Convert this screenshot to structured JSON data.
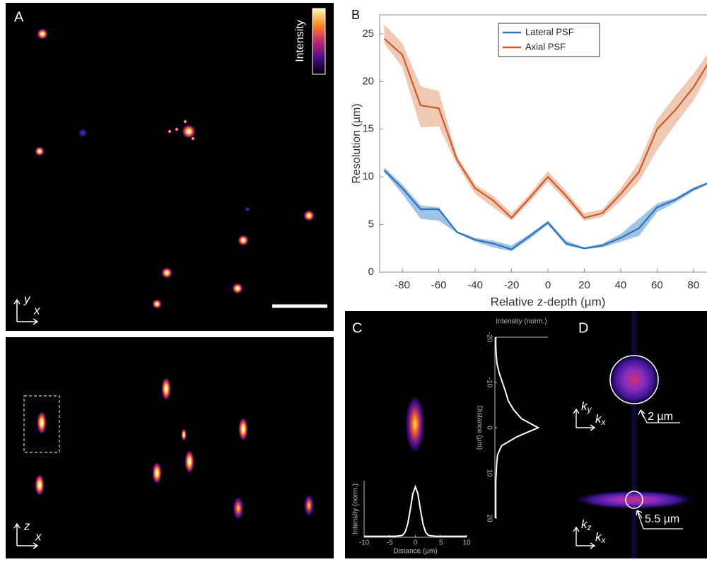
{
  "panel_labels": [
    "A",
    "B",
    "C",
    "D"
  ],
  "panel_a": {
    "colorbar_label": "Intensity",
    "xy_axis_labels": {
      "vertical": "y",
      "horizontal": "x"
    },
    "xz_axis_labels": {
      "vertical": "z",
      "horizontal": "x"
    }
  },
  "panel_d": {
    "top_axes": [
      {
        "base": "k",
        "sub": "y"
      },
      {
        "base": "k",
        "sub": "x"
      }
    ],
    "top_size": "2 µm",
    "bottom_axes": [
      {
        "base": "k",
        "sub": "z"
      },
      {
        "base": "k",
        "sub": "x"
      }
    ],
    "bottom_size": "5.5 µm"
  },
  "chart_data": [
    {
      "type": "line",
      "xlabel": "Relative z-depth (µm)",
      "ylabel": "Resolution (µm)",
      "x": [
        -90,
        -80,
        -70,
        -60,
        -50,
        -40,
        -30,
        -20,
        -10,
        0,
        10,
        20,
        30,
        40,
        50,
        60,
        70,
        80,
        90
      ],
      "series": [
        {
          "name": "Lateral PSF",
          "color": "#2e73b8",
          "band_color": "#8fb8e0",
          "values": [
            10.7,
            8.8,
            6.6,
            6.6,
            4.2,
            3.4,
            3.0,
            2.4,
            3.8,
            5.2,
            3.0,
            2.5,
            2.8,
            3.6,
            4.6,
            6.8,
            7.6,
            8.7,
            9.5
          ],
          "lower": [
            10.5,
            8.2,
            5.6,
            5.4,
            4.1,
            3.2,
            2.6,
            2.2,
            3.5,
            5.0,
            2.8,
            2.4,
            2.6,
            3.2,
            3.8,
            6.3,
            7.3,
            8.5,
            9.4
          ],
          "upper": [
            11.0,
            9.2,
            7.0,
            6.8,
            4.3,
            3.6,
            3.3,
            2.8,
            4.0,
            5.4,
            3.3,
            2.6,
            3.0,
            4.0,
            5.6,
            7.2,
            7.8,
            8.9,
            9.6
          ]
        },
        {
          "name": "Axial PSF",
          "color": "#cc5a2a",
          "band_color": "#edbfa8",
          "values": [
            24.5,
            22.8,
            17.5,
            17.2,
            11.8,
            8.8,
            7.5,
            5.7,
            7.8,
            10.0,
            8.0,
            5.7,
            6.2,
            8.2,
            10.5,
            15.0,
            17.0,
            19.4,
            22.5
          ],
          "lower": [
            24.0,
            21.5,
            15.2,
            15.3,
            11.3,
            8.2,
            6.8,
            5.4,
            7.4,
            9.5,
            7.5,
            5.4,
            5.8,
            7.5,
            9.5,
            12.8,
            15.5,
            18.0,
            21.5
          ],
          "upper": [
            26.0,
            24.0,
            19.5,
            19.0,
            12.2,
            9.2,
            8.0,
            6.2,
            8.2,
            10.6,
            8.5,
            6.2,
            6.6,
            8.8,
            11.5,
            16.0,
            18.5,
            20.8,
            23.5
          ]
        }
      ],
      "xlim": [
        -92.5,
        92.5
      ],
      "ylim": [
        0,
        27
      ],
      "xticks": [
        -80,
        -60,
        -40,
        -20,
        0,
        20,
        40,
        60,
        80
      ],
      "yticks": [
        0,
        5,
        10,
        15,
        20,
        25
      ],
      "legend": "top"
    },
    {
      "type": "line",
      "xlabel": "Distance (µm)",
      "ylabel": "Intensity (norm.)",
      "color": "#ffffff",
      "x": [
        -10,
        -8,
        -6,
        -5,
        -4,
        -3,
        -2.5,
        -2,
        -1.5,
        -1,
        -0.5,
        0,
        0.5,
        1,
        1.5,
        2,
        2.5,
        3,
        4,
        5,
        6,
        8,
        10
      ],
      "values": [
        0.02,
        0.02,
        0.02,
        0.02,
        0.02,
        0.03,
        0.04,
        0.1,
        0.26,
        0.54,
        0.86,
        1.0,
        0.86,
        0.54,
        0.26,
        0.1,
        0.04,
        0.03,
        0.02,
        0.02,
        0.02,
        0.02,
        0.02
      ],
      "xlim": [
        -10,
        10
      ],
      "ylim": [
        0,
        1.12
      ],
      "xticks": [
        -10,
        -5,
        0,
        5,
        10
      ]
    },
    {
      "type": "line",
      "orientation": "vertical",
      "xlabel": "Intensity (norm.)",
      "ylabel": "Distance (µm)",
      "color": "#ffffff",
      "y": [
        -20,
        -18,
        -16,
        -14,
        -12,
        -10,
        -8,
        -6,
        -4,
        -2,
        0,
        2,
        4,
        6,
        8,
        10,
        12,
        14,
        16,
        18,
        20
      ],
      "values": [
        0.02,
        0.02,
        0.03,
        0.05,
        0.1,
        0.17,
        0.24,
        0.3,
        0.42,
        0.6,
        0.98,
        0.5,
        0.15,
        0.06,
        0.04,
        0.03,
        0.02,
        0.02,
        0.02,
        0.02,
        0.02
      ],
      "xlim": [
        0,
        1.2
      ],
      "ylim": [
        -20,
        20
      ],
      "yticks": [
        -20,
        -10,
        0,
        10,
        20
      ]
    }
  ]
}
